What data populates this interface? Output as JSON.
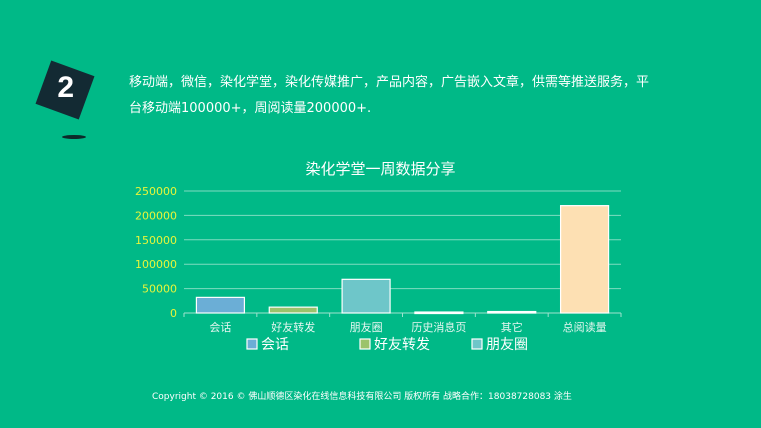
{
  "badge": {
    "number": "2"
  },
  "description": "移动端，微信，染化学堂，染化传媒推广，产品内容，广告嵌入文章，供需等推送服务，平台移动端100000+，周阅读量200000+.",
  "chart_data": {
    "type": "bar",
    "title": "染化学堂一周数据分享",
    "categories": [
      "会话",
      "好友转发",
      "朋友圈",
      "历史消息页",
      "其它",
      "总阅读量"
    ],
    "values": [
      32000,
      12000,
      69000,
      2000,
      3000,
      220000
    ],
    "colors": [
      "#6baed6",
      "#9bc36b",
      "#6ec6c9",
      "#ffffff",
      "#ffffff",
      "#fde0b3"
    ],
    "yticks": [
      0,
      50000,
      100000,
      150000,
      200000,
      250000
    ],
    "ylim": [
      0,
      250000
    ],
    "grid": true,
    "legend": [
      {
        "label": "会话",
        "color": "#6baed6"
      },
      {
        "label": "好友转发",
        "color": "#9bc36b"
      },
      {
        "label": "朋友圈",
        "color": "#6ec6c9"
      }
    ],
    "legend_placement": "bottom"
  },
  "footer": "Copyright © 2016 ©   佛山顺德区染化在线信息科技有限公司  版权所有  战略合作：18038728083   涂生"
}
